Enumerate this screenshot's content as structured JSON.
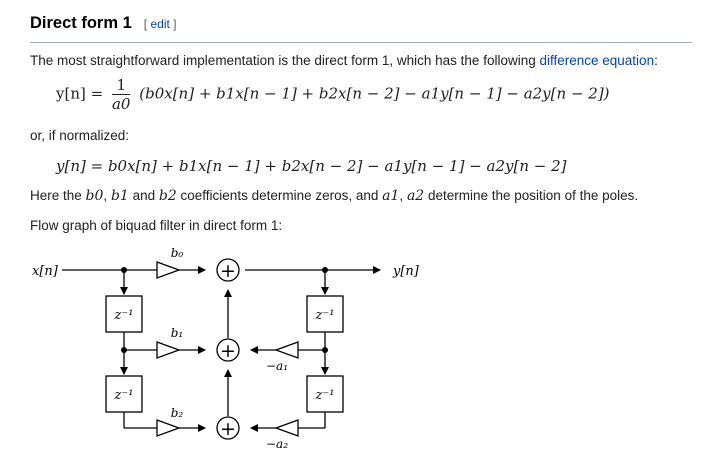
{
  "section": {
    "title": "Direct form 1",
    "edit_open": "[",
    "edit_label": "edit",
    "edit_close": "]"
  },
  "intro": {
    "before": "The most straightforward implementation is the direct form 1, which has the following ",
    "link": "difference equation",
    "after": ":"
  },
  "eq1": {
    "lhs": "y[n] =",
    "frac_num": "1",
    "frac_den": "a0",
    "rhs": "(b0x[n] + b1x[n − 1] + b2x[n − 2] − a1y[n − 1] − a2y[n − 2])"
  },
  "or_normalized": "or, if normalized:",
  "eq2": "y[n] = b0x[n] + b1x[n − 1] + b2x[n − 2] − a1y[n − 1] − a2y[n − 2]",
  "coeffs_sentence": {
    "here_the": "Here the",
    "b0": "b0",
    "comma1": ",",
    "b1": "b1",
    "and": "and",
    "b2": "b2",
    "mid": "coefficients determine zeros, and",
    "a1": "a1",
    "comma2": ",",
    "a2": "a2",
    "end": "determine the position of the poles."
  },
  "flow_caption": "Flow graph of biquad filter in direct form 1:",
  "diagram": {
    "input_label": "x[n]",
    "output_label": "y[n]",
    "delay_label": "z⁻¹",
    "gain_b0": "b₀",
    "gain_b1": "b₁",
    "gain_b2": "b₂",
    "gain_a1": "−a₁",
    "gain_a2": "−a₂",
    "adder_symbol": "+"
  }
}
